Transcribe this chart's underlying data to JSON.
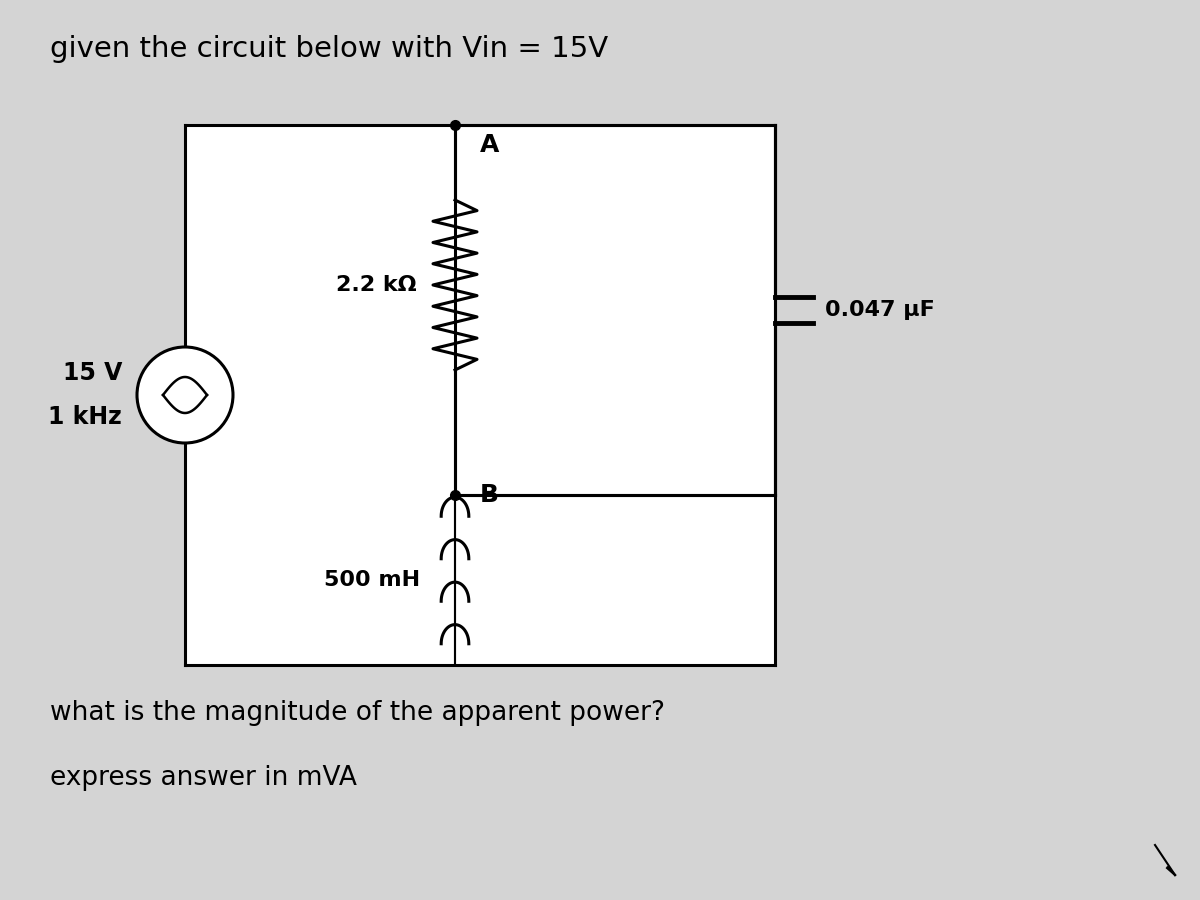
{
  "bg_color": "#d4d4d4",
  "title": "given the circuit below with Vin = 15V",
  "title_fontsize": 21,
  "question1": "what is the magnitude of the apparent power?",
  "question2": "express answer in mVA",
  "q1_fontsize": 19,
  "q2_fontsize": 19,
  "source_label1": "15 V",
  "source_label2": "1 kHz",
  "resistor_label": "2.2 kΩ",
  "inductor_label": "500 mH",
  "capacitor_label": "0.047 μF",
  "node_a": "A",
  "node_b": "B",
  "line_color": "#000000",
  "line_width": 2.2,
  "white": "#ffffff"
}
